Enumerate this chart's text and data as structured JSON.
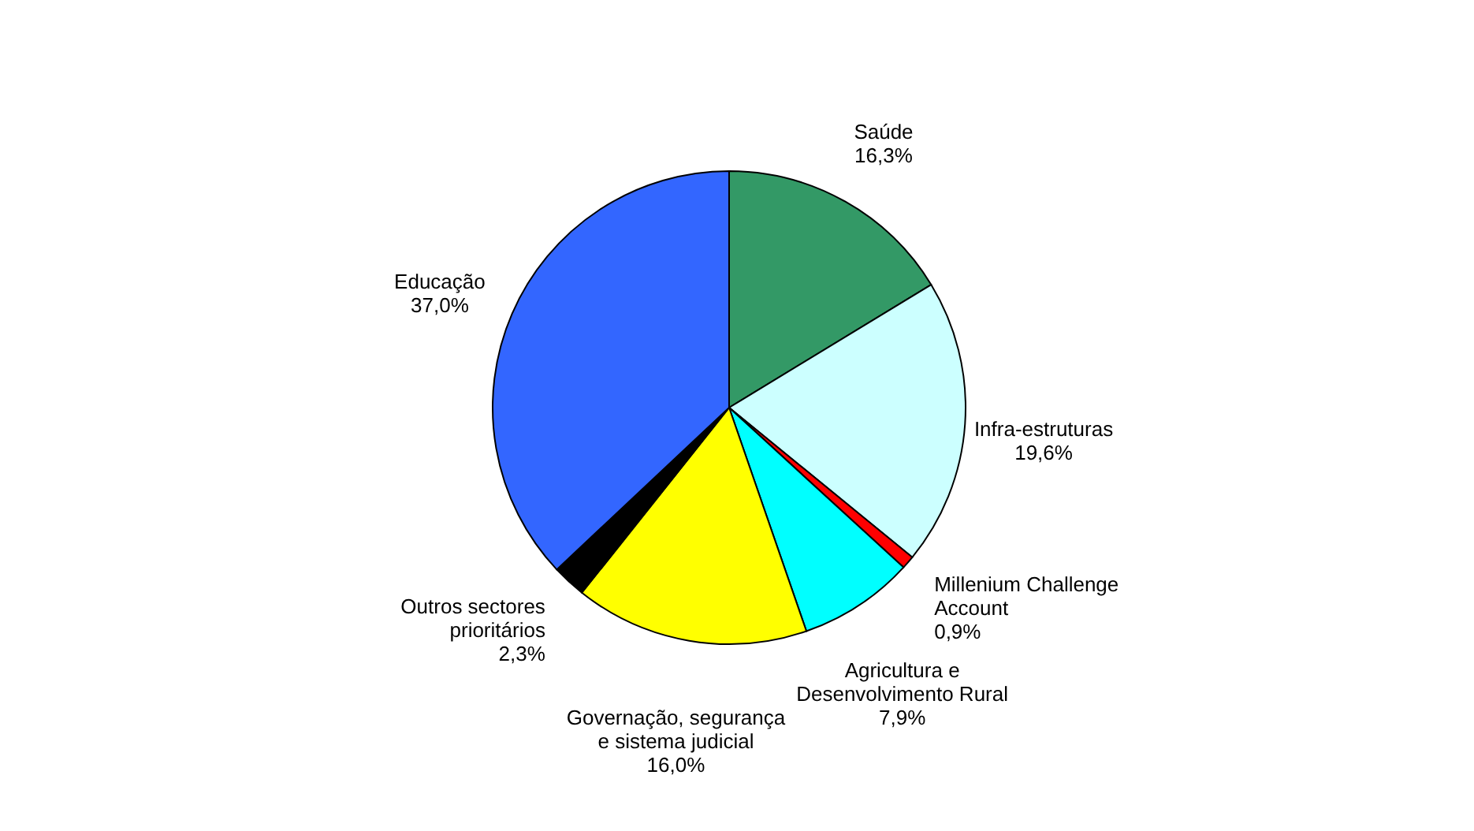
{
  "chart_data": {
    "type": "pie",
    "categories": [
      "Saúde",
      "Infra-estruturas",
      "Millenium Challenge Account",
      "Agricultura e Desenvolvimento Rural",
      "Governação, segurança e sistema judicial",
      "Outros sectores prioritários",
      "Educação"
    ],
    "values": [
      16.3,
      19.6,
      0.9,
      7.9,
      16.0,
      2.3,
      37.0
    ],
    "value_labels": [
      "16,3%",
      "19,6%",
      "0,9%",
      "7,9%",
      "16,0%",
      "2,3%",
      "37,0%"
    ],
    "colors": [
      "#339966",
      "#ccffff",
      "#ff0000",
      "#00ffff",
      "#ffff00",
      "#000000",
      "#3366ff"
    ],
    "legend": false
  }
}
